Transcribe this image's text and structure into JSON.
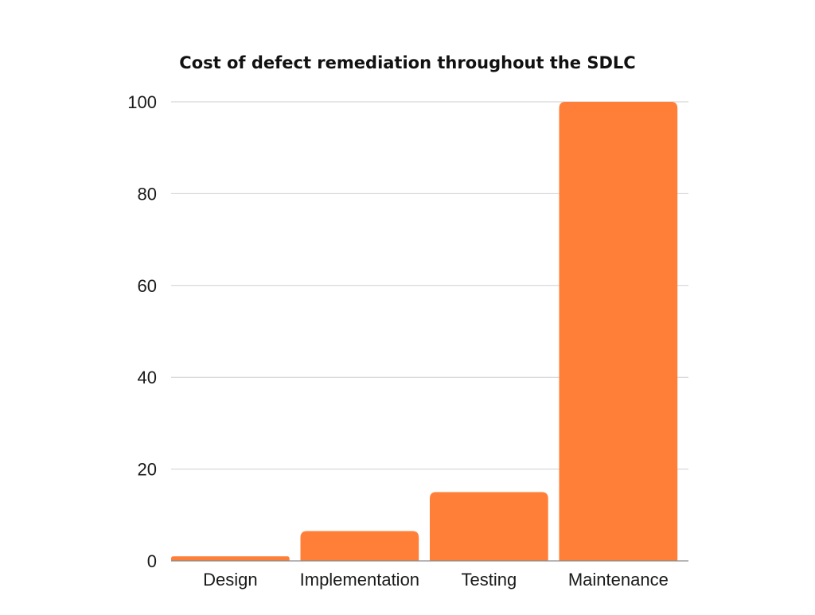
{
  "chart_data": {
    "type": "bar",
    "title": "Cost of defect remediation throughout the SDLC",
    "xlabel": "",
    "ylabel": "",
    "categories": [
      "Design",
      "Implementation",
      "Testing",
      "Maintenance"
    ],
    "values": [
      1,
      6.5,
      15,
      100
    ],
    "ylim": [
      0,
      100
    ],
    "yticks": [
      0,
      20,
      40,
      60,
      80,
      100
    ],
    "grid": true,
    "legend": "none",
    "bar_color": "#ff7f38"
  }
}
